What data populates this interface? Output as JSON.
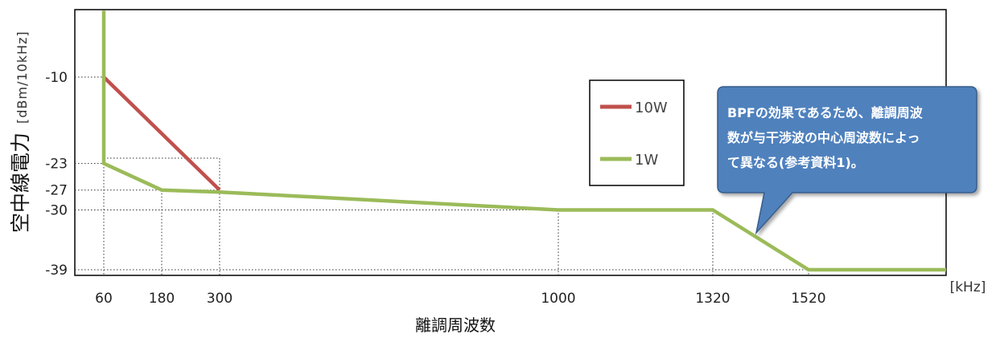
{
  "chart_data": {
    "type": "line",
    "ylabel": "空中線電力",
    "ylabel_unit": "[dBm/10kHz]",
    "xlabel": "離調周波数",
    "x_unit": "[kHz]",
    "x_ticks": [
      60,
      180,
      300,
      1000,
      1320,
      1520
    ],
    "y_ticks": [
      -10,
      -23,
      -27,
      -30,
      -39
    ],
    "ylim": [
      -40,
      0
    ],
    "grid": "dotted guide lines at key points",
    "legend_position": "center-right",
    "series": [
      {
        "name": "10W",
        "color": "#c0504d",
        "points": [
          [
            60,
            -10
          ],
          [
            300,
            -27
          ]
        ]
      },
      {
        "name": "1W",
        "color": "#9bbb59",
        "points": [
          [
            60,
            0
          ],
          [
            60,
            -23
          ],
          [
            180,
            -27
          ],
          [
            300,
            -27.3
          ],
          [
            1000,
            -30
          ],
          [
            1320,
            -30
          ],
          [
            1520,
            -39
          ],
          [
            1800,
            -39
          ]
        ]
      }
    ],
    "annotations": [
      {
        "type": "callout",
        "lines": [
          "BPFの効果であるため、離調周波",
          "数が与干渉波の中心周波数によっ",
          "て異なる(参考資料1)。"
        ],
        "color": "#4f81bd"
      }
    ]
  }
}
